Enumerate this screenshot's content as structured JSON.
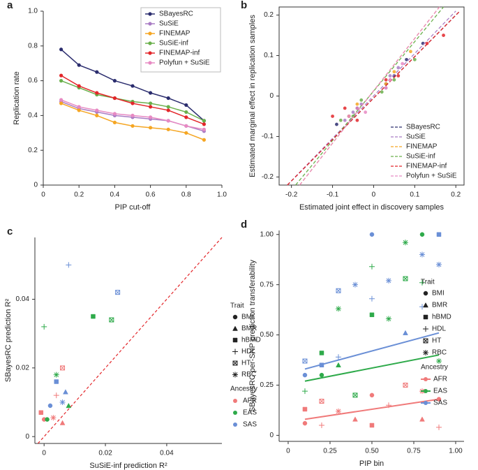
{
  "chart_data": [
    {
      "type": "line",
      "panel_label": "a",
      "x_label": "PIP cut-off",
      "y_label": "Replication rate",
      "x": [
        0.1,
        0.2,
        0.3,
        0.4,
        0.5,
        0.6,
        0.7,
        0.8,
        0.9
      ],
      "xlim": [
        0,
        1
      ],
      "ylim": [
        0,
        1
      ],
      "xticks": [
        0,
        0.2,
        0.4,
        0.6,
        0.8,
        {
          "value": 1,
          "label": "1.0"
        }
      ],
      "yticks": [
        0,
        0.2,
        0.4,
        0.6,
        0.8,
        {
          "value": 1,
          "label": "1.0"
        }
      ],
      "legend": "upper right",
      "series": [
        {
          "name": "SBayesRC",
          "color": "#2b2d6e",
          "values": [
            0.78,
            0.69,
            0.65,
            0.6,
            0.57,
            0.53,
            0.5,
            0.46,
            0.37
          ]
        },
        {
          "name": "SuSiE",
          "color": "#a97cc4",
          "values": [
            0.48,
            0.44,
            0.42,
            0.4,
            0.39,
            0.38,
            0.37,
            0.34,
            0.31
          ]
        },
        {
          "name": "FINEMAP",
          "color": "#f5a623",
          "values": [
            0.47,
            0.43,
            0.4,
            0.36,
            0.34,
            0.33,
            0.32,
            0.3,
            0.26
          ]
        },
        {
          "name": "SuSiE-inf",
          "color": "#6ab04c",
          "values": [
            0.6,
            0.56,
            0.52,
            0.5,
            0.48,
            0.47,
            0.45,
            0.42,
            0.37
          ]
        },
        {
          "name": "FINEMAP-inf",
          "color": "#e3262a",
          "values": [
            0.63,
            0.57,
            0.53,
            0.5,
            0.47,
            0.45,
            0.43,
            0.39,
            0.35
          ]
        },
        {
          "name": "Polyfun + SuSiE",
          "color": "#e78ac3",
          "values": [
            0.49,
            0.45,
            0.43,
            0.41,
            0.4,
            0.39,
            0.37,
            0.34,
            0.32
          ]
        }
      ]
    },
    {
      "type": "scatter",
      "panel_label": "b",
      "x_label": "Estimated joint effect in discovery samples",
      "y_label": "Estimated marginal effect in replication samples",
      "xlim": [
        -0.23,
        0.22
      ],
      "ylim": [
        -0.22,
        0.22
      ],
      "xticks": [
        -0.2,
        -0.1,
        0,
        0.1,
        0.2
      ],
      "yticks": [
        -0.2,
        -0.1,
        0,
        0.1,
        0.2
      ],
      "frame": true,
      "legend": "lower right",
      "series": [
        {
          "name": "SBayesRC",
          "color": "#2b2d6e",
          "x": [
            -0.09,
            -0.06,
            -0.04,
            0.03,
            0.05,
            0.08,
            0.12
          ],
          "values": [
            -0.07,
            -0.05,
            -0.03,
            0.03,
            0.05,
            0.09,
            0.13
          ],
          "line_x": [
            -0.21,
            0.21
          ],
          "line_values": [
            -0.22,
            0.21
          ]
        },
        {
          "name": "SuSiE",
          "color": "#a97cc4",
          "x": [
            -0.07,
            -0.05,
            -0.03,
            0.03,
            0.04,
            0.06
          ],
          "values": [
            -0.06,
            -0.04,
            -0.02,
            0.02,
            0.05,
            0.07
          ],
          "line_x": [
            -0.21,
            0.2
          ],
          "line_values": [
            -0.22,
            0.21
          ]
        },
        {
          "name": "FINEMAP",
          "color": "#f5a623",
          "x": [
            -0.06,
            -0.04,
            0.03,
            0.05,
            0.09
          ],
          "values": [
            -0.05,
            -0.02,
            0.03,
            0.06,
            0.11
          ],
          "line_x": [
            -0.18,
            0.16
          ],
          "line_values": [
            -0.22,
            0.22
          ]
        },
        {
          "name": "SuSiE-inf",
          "color": "#6ab04c",
          "x": [
            -0.08,
            -0.05,
            -0.03,
            0.02,
            0.05,
            0.1
          ],
          "values": [
            -0.06,
            -0.05,
            -0.01,
            0.01,
            0.04,
            0.09
          ],
          "line_x": [
            -0.19,
            0.17
          ],
          "line_values": [
            -0.22,
            0.22
          ]
        },
        {
          "name": "FINEMAP-inf",
          "color": "#e3262a",
          "x": [
            -0.1,
            -0.07,
            -0.04,
            0.03,
            0.06,
            0.13,
            0.17
          ],
          "values": [
            -0.05,
            -0.03,
            -0.06,
            0.04,
            0.05,
            0.13,
            0.15
          ],
          "line_x": [
            -0.21,
            0.21
          ],
          "line_values": [
            -0.22,
            0.21
          ]
        },
        {
          "name": "Polyfun + SuSiE",
          "color": "#e78ac3",
          "x": [
            -0.06,
            -0.04,
            -0.02,
            0.03,
            0.04,
            0.07
          ],
          "values": [
            -0.05,
            -0.03,
            -0.04,
            0.02,
            0.04,
            0.08
          ],
          "line_x": [
            -0.18,
            0.16
          ],
          "line_values": [
            -0.22,
            0.22
          ]
        }
      ]
    },
    {
      "type": "scatter",
      "panel_label": "c",
      "x_label": "SuSiE-inf prediction R²",
      "y_label": "SBayesRC prediction R²",
      "xlim": [
        -0.003,
        0.058
      ],
      "ylim": [
        -0.002,
        0.058
      ],
      "xticks": [
        0,
        0.02,
        0.04
      ],
      "yticks": [
        0,
        0.02,
        0.04
      ],
      "diagonal": true,
      "diagonal_color": "#e3262a",
      "trait_title": "Trait",
      "traits": [
        "BMI",
        "BMR",
        "hBMD",
        "HDL",
        "HT",
        "RBC"
      ],
      "ancestry_title": "Ancestry",
      "series": [
        {
          "name": "AFR",
          "color": "#f07a7a",
          "x": [
            0.0,
            0.006,
            -0.001,
            0.004,
            0.006,
            0.003
          ],
          "values": [
            0.005,
            0.004,
            0.007,
            0.012,
            0.02,
            0.0055
          ],
          "trait": [
            "BMI",
            "BMR",
            "hBMD",
            "HDL",
            "HT",
            "RBC"
          ]
        },
        {
          "name": "EAS",
          "color": "#2eaa4a",
          "x": [
            0.001,
            0.008,
            0.016,
            0.0,
            0.022,
            0.004
          ],
          "values": [
            0.005,
            0.009,
            0.035,
            0.032,
            0.034,
            0.018
          ],
          "trait": [
            "BMI",
            "BMR",
            "hBMD",
            "HDL",
            "HT",
            "RBC"
          ]
        },
        {
          "name": "SAS",
          "color": "#6a8fd6",
          "x": [
            0.002,
            0.007,
            0.004,
            0.008,
            0.024,
            0.006
          ],
          "values": [
            0.009,
            0.013,
            0.016,
            0.05,
            0.042,
            0.01
          ],
          "trait": [
            "BMI",
            "BMR",
            "hBMD",
            "HDL",
            "HT",
            "RBC"
          ]
        }
      ]
    },
    {
      "type": "scatter",
      "panel_label": "d",
      "x_label": "PIP bin",
      "y_label": "SBayesRC per-SNP prediction transferability",
      "xlim": [
        -0.054,
        1.05
      ],
      "ylim": [
        -0.03,
        1.02
      ],
      "xticks": [
        0,
        0.25,
        {
          "value": 0.5,
          "label": "0.50"
        },
        0.75,
        {
          "value": 1,
          "label": "1.00"
        }
      ],
      "yticks": [
        0,
        0.25,
        {
          "value": 0.5,
          "label": "0.50"
        },
        0.75,
        {
          "value": 1,
          "label": "1.00"
        }
      ],
      "trait_title": "Trait",
      "traits": [
        "BMI",
        "BMR",
        "hBMD",
        "HDL",
        "HT",
        "RBC"
      ],
      "ancestry_title": "Ancestry",
      "series": [
        {
          "name": "AFR",
          "color": "#f07a7a",
          "x": [
            0.1,
            0.1,
            0.2,
            0.2,
            0.3,
            0.4,
            0.5,
            0.5,
            0.6,
            0.7,
            0.8,
            0.8,
            0.9,
            0.9
          ],
          "values": [
            0.06,
            0.13,
            0.05,
            0.17,
            0.12,
            0.08,
            0.2,
            0.05,
            0.15,
            0.25,
            0.22,
            0.08,
            0.18,
            0.04
          ],
          "trait": [
            "BMI",
            "hBMD",
            "HDL",
            "HT",
            "RBC",
            "BMR",
            "BMI",
            "hBMD",
            "HDL",
            "HT",
            "RBC",
            "BMR",
            "BMI",
            "HDL"
          ],
          "line_x": [
            0.1,
            0.9
          ],
          "line_values": [
            0.08,
            0.18
          ]
        },
        {
          "name": "EAS",
          "color": "#2eaa4a",
          "x": [
            0.1,
            0.2,
            0.2,
            0.3,
            0.3,
            0.4,
            0.5,
            0.5,
            0.6,
            0.7,
            0.7,
            0.8,
            0.8,
            0.9
          ],
          "values": [
            0.22,
            0.41,
            0.3,
            0.63,
            0.35,
            0.2,
            0.6,
            0.84,
            0.58,
            0.78,
            0.96,
            1.0,
            0.76,
            0.37
          ],
          "trait": [
            "HDL",
            "hBMD",
            "BMI",
            "RBC",
            "BMR",
            "HT",
            "hBMD",
            "HDL",
            "RBC",
            "HT",
            "RBC",
            "BMI",
            "HDL",
            "RBC"
          ],
          "line_x": [
            0.1,
            0.9
          ],
          "line_values": [
            0.27,
            0.4
          ]
        },
        {
          "name": "SAS",
          "color": "#6a8fd6",
          "x": [
            0.1,
            0.1,
            0.2,
            0.3,
            0.3,
            0.4,
            0.5,
            0.5,
            0.6,
            0.7,
            0.8,
            0.8,
            0.9,
            0.9
          ],
          "values": [
            0.3,
            0.37,
            0.35,
            0.72,
            0.39,
            0.75,
            1.0,
            0.68,
            0.77,
            0.51,
            0.9,
            0.64,
            0.85,
            1.0
          ],
          "trait": [
            "BMI",
            "HT",
            "hBMD",
            "HT",
            "HDL",
            "RBC",
            "BMI",
            "HDL",
            "RBC",
            "BMR",
            "RBC",
            "HDL",
            "RBC",
            "hBMD"
          ],
          "line_x": [
            0.1,
            0.9
          ],
          "line_values": [
            0.33,
            0.51
          ]
        }
      ]
    }
  ]
}
